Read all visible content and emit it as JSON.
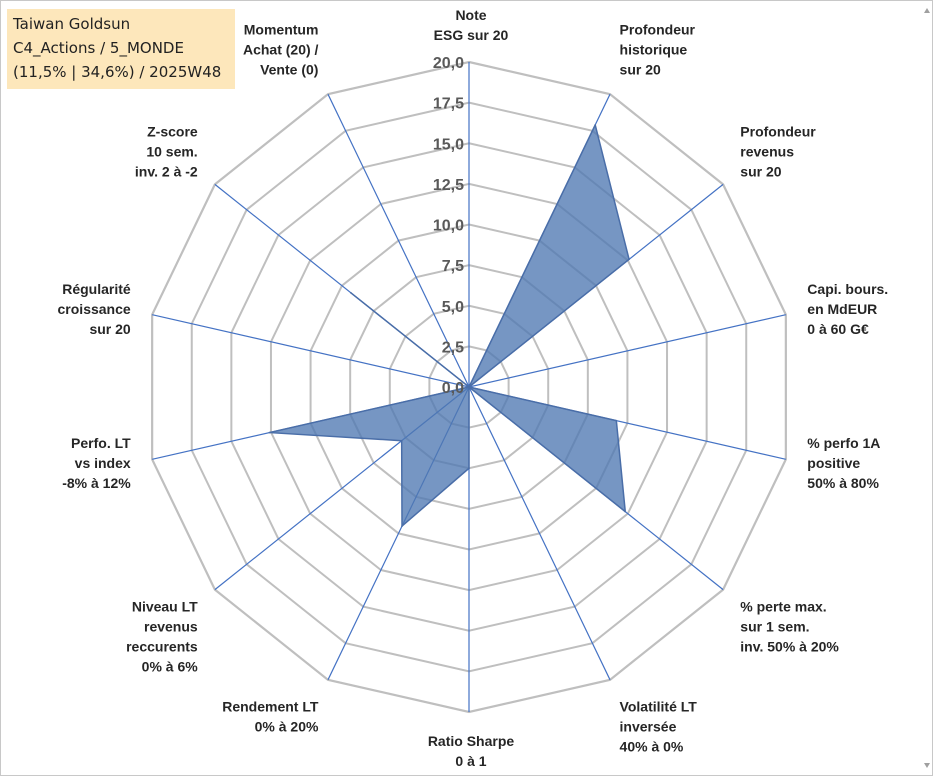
{
  "info_box": {
    "line1": "Taiwan Goldsun",
    "line2": "C4_Actions / 5_MONDE",
    "line3": "(11,5% | 34,6%) / 2025W48"
  },
  "colors": {
    "grid_ring": "#bfbfbf",
    "spoke": "#4472c4",
    "fill": "#4f79b2",
    "fill_edge": "#4a6ea8",
    "box_bg": "#fde7bb"
  },
  "chart_data": {
    "type": "radar",
    "rmin": 0,
    "rmax": 20,
    "tick_step": 2.5,
    "tick_labels": [
      "0,0",
      "2,5",
      "5,0",
      "7,5",
      "10,0",
      "12,5",
      "15,0",
      "17,5",
      "20,0"
    ],
    "grid": true,
    "categories": [
      [
        "Note",
        "ESG sur 20"
      ],
      [
        "Profondeur",
        "historique",
        "sur 20"
      ],
      [
        "Profondeur",
        "revenus",
        "sur 20"
      ],
      [
        "Capi. bours.",
        "en MdEUR",
        "0 à 60 G€"
      ],
      [
        "% perfo 1A",
        "positive",
        "50% à 80%"
      ],
      [
        "% perte max.",
        "sur 1 sem.",
        "inv. 50% à 20%"
      ],
      [
        "Volatilité LT",
        "inversée",
        "40% à 0%"
      ],
      [
        "Ratio Sharpe",
        "0 à 1"
      ],
      [
        "Rendement LT",
        "0% à 20%"
      ],
      [
        "Niveau LT",
        "revenus",
        "reccurents",
        "0% à 6%"
      ],
      [
        "Perfo. LT",
        "vs index",
        "-8% à 12%"
      ],
      [
        "Régularité",
        "croissance",
        "sur 20"
      ],
      [
        "Z-score",
        "10 sem.",
        "inv. 2 à -2"
      ],
      [
        "Momentum",
        "Achat (20) /",
        "Vente (0)"
      ]
    ],
    "series": [
      {
        "values": [
          0,
          17.9,
          12.6,
          0,
          9.3,
          12.3,
          0,
          5.0,
          9.5,
          5.3,
          12.6,
          0,
          9.3,
          0
        ]
      }
    ]
  }
}
